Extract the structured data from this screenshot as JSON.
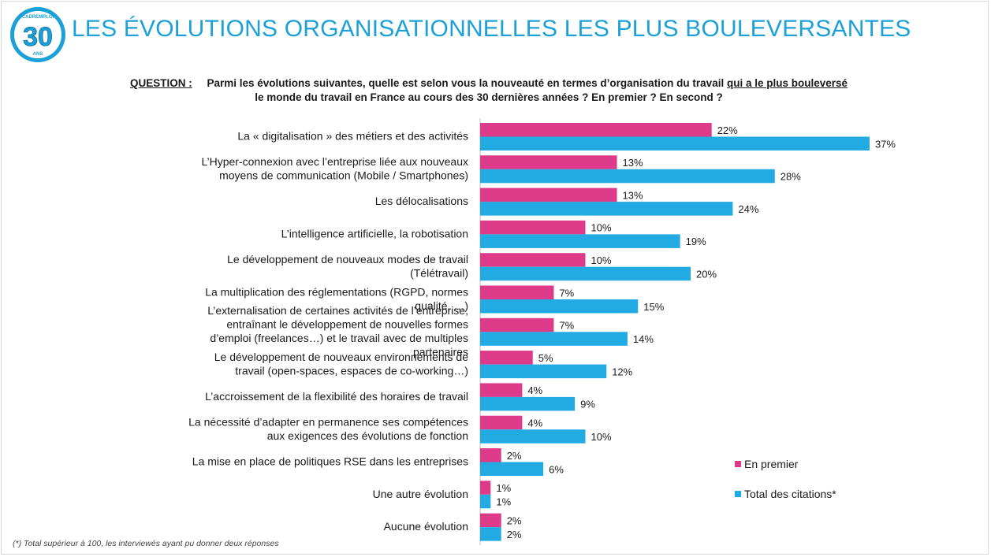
{
  "logo": {
    "top_text": "CADREMPLOI",
    "number": "30",
    "bottom_text": "ANS"
  },
  "header": {
    "title": "LES ÉVOLUTIONS ORGANISATIONNELLES LES PLUS BOULEVERSANTES"
  },
  "question": {
    "label": "QUESTION :",
    "part1": "Parmi les évolutions suivantes, quelle est selon vous la nouveauté en termes d’organisation du travail ",
    "underlined": "qui a le plus bouleversé",
    "part2": " le monde du travail en France au cours des 30 dernières années ? En premier ? En second ?"
  },
  "colors": {
    "first": "#dd3a8a",
    "total": "#22aae2",
    "title": "#1ba0d8"
  },
  "chart_data": {
    "type": "bar",
    "orientation": "horizontal",
    "value_suffix": "%",
    "categories": [
      [
        "La « digitalisation » des métiers et des activités"
      ],
      [
        "L’Hyper-connexion avec l’entreprise liée aux nouveaux",
        "moyens de communication (Mobile / Smartphones)"
      ],
      [
        "Les délocalisations"
      ],
      [
        "L’intelligence artificielle, la robotisation"
      ],
      [
        "Le développement de nouveaux modes de travail",
        "(Télétravail)"
      ],
      [
        "La multiplication des réglementations (RGPD, normes",
        "qualité, …)"
      ],
      [
        "L’externalisation de certaines activités de l’entreprise,",
        "entraînant le développement de nouvelles formes",
        "d’emploi (freelances…) et le travail avec de multiples",
        "partenaires"
      ],
      [
        "Le développement de nouveaux environnements de",
        "travail (open-spaces, espaces de co-working…)"
      ],
      [
        "L’accroissement de la flexibilité des horaires de travail"
      ],
      [
        "La nécessité d’adapter en permanence ses compétences",
        "aux exigences des évolutions de fonction"
      ],
      [
        "La mise en place de politiques RSE dans les entreprises"
      ],
      [
        "Une autre évolution"
      ],
      [
        "Aucune évolution"
      ]
    ],
    "series": [
      {
        "name": "En premier",
        "values": [
          22,
          13,
          13,
          10,
          10,
          7,
          7,
          5,
          4,
          4,
          2,
          1,
          2
        ]
      },
      {
        "name": "Total des citations*",
        "values": [
          37,
          28,
          24,
          19,
          20,
          15,
          14,
          12,
          9,
          10,
          6,
          1,
          2
        ]
      }
    ],
    "legend_position": "right"
  },
  "footnote": "(*) Total supérieur à 100, les interviewés ayant pu donner deux réponses"
}
